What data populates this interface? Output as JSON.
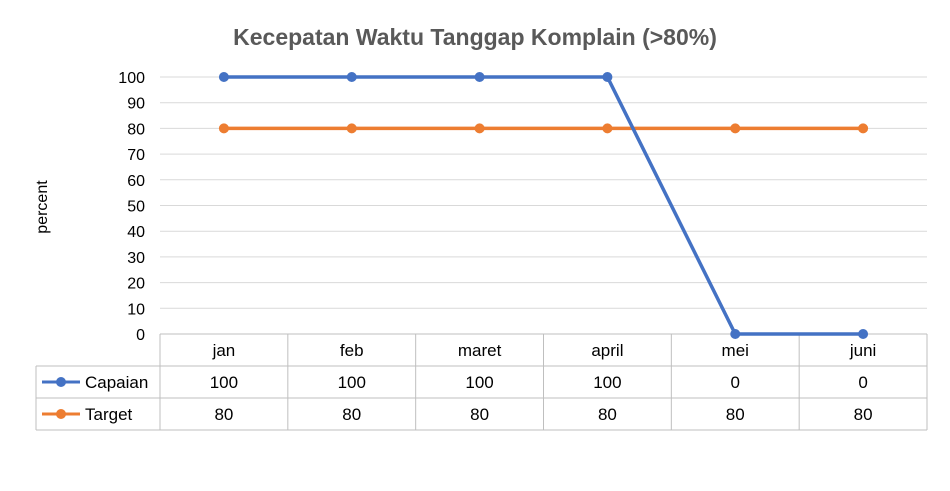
{
  "chart_data": {
    "type": "line",
    "title": "Kecepatan Waktu Tanggap Komplain (>80%)",
    "xlabel": "",
    "ylabel": "percent",
    "ylim": [
      0,
      100
    ],
    "yticks": [
      0,
      10,
      20,
      30,
      40,
      50,
      60,
      70,
      80,
      90,
      100
    ],
    "grid": true,
    "legend": "data-table",
    "categories": [
      "jan",
      "feb",
      "maret",
      "april",
      "mei",
      "juni"
    ],
    "series": [
      {
        "name": "Capaian",
        "color": "#4472C4",
        "values": [
          100,
          100,
          100,
          100,
          0,
          0
        ]
      },
      {
        "name": "Target",
        "color": "#ED7D31",
        "values": [
          80,
          80,
          80,
          80,
          80,
          80
        ]
      }
    ]
  }
}
